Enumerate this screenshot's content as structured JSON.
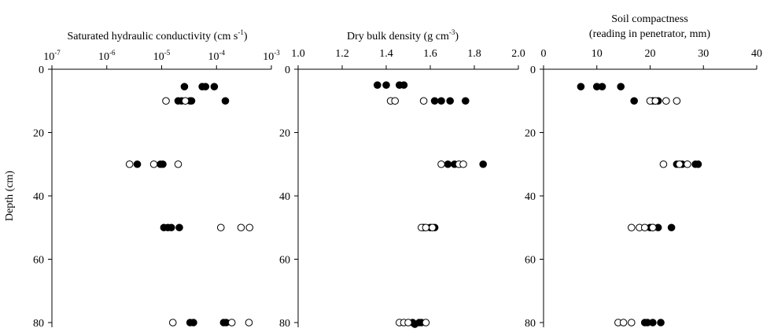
{
  "chart_data": [
    {
      "type": "scatter",
      "title": "Saturated hydraulic conductivity (cm s",
      "title_sup": "-1",
      "title_end": ")",
      "ylabel": "Depth (cm)",
      "x_scale": "log",
      "xlim": [
        1e-07,
        0.001
      ],
      "x_tick_labels": [
        {
          "value": 1e-07,
          "base": "10",
          "exp": "-7"
        },
        {
          "value": 1e-06,
          "base": "10",
          "exp": "-6"
        },
        {
          "value": 1e-05,
          "base": "10",
          "exp": "-5"
        },
        {
          "value": 0.0001,
          "base": "10",
          "exp": "-4"
        },
        {
          "value": 0.001,
          "base": "10",
          "exp": "-3"
        }
      ],
      "ylim": [
        0,
        80
      ],
      "y_reversed": true,
      "y_ticks": [
        0,
        20,
        40,
        60,
        80
      ],
      "x_axis_position": "top",
      "series": [
        {
          "marker": "filled",
          "points": [
            [
              2.6e-05,
              5.5
            ],
            [
              5.5e-05,
              5.5
            ],
            [
              6.3e-05,
              5.5
            ],
            [
              9.1e-05,
              5.5
            ],
            [
              2e-05,
              10
            ],
            [
              2.3e-05,
              10
            ],
            [
              3.3e-05,
              10
            ],
            [
              3.5e-05,
              10
            ],
            [
              0.000145,
              10
            ],
            [
              3.6e-06,
              30
            ],
            [
              9.5e-06,
              30
            ],
            [
              1.05e-05,
              30
            ],
            [
              1.1e-05,
              50
            ],
            [
              1.3e-05,
              50
            ],
            [
              1.5e-05,
              50
            ],
            [
              2.1e-05,
              50
            ],
            [
              3.3e-05,
              80
            ],
            [
              3.8e-05,
              80
            ],
            [
              0.000135,
              80
            ],
            [
              0.00015,
              80
            ]
          ]
        },
        {
          "marker": "open",
          "points": [
            [
              1.2e-05,
              10
            ],
            [
              2.7e-05,
              10
            ],
            [
              2.6e-06,
              30
            ],
            [
              7.2e-06,
              30
            ],
            [
              2e-05,
              30
            ],
            [
              0.00012,
              50
            ],
            [
              0.00028,
              50
            ],
            [
              0.0004,
              50
            ],
            [
              1.6e-05,
              80
            ],
            [
              0.00019,
              80
            ],
            [
              0.00039,
              80
            ]
          ]
        }
      ]
    },
    {
      "type": "scatter",
      "title": "Dry bulk density (g cm",
      "title_sup": "-3",
      "title_end": ")",
      "x_scale": "linear",
      "xlim": [
        1.0,
        2.0
      ],
      "x_ticks": [
        1.0,
        1.2,
        1.4,
        1.6,
        1.8,
        2.0
      ],
      "x_tick_labels": [
        "1.0",
        "1.2",
        "1.4",
        "1.6",
        "1.8",
        "2.0"
      ],
      "ylim": [
        0,
        80
      ],
      "y_reversed": true,
      "y_ticks": [
        0,
        20,
        40,
        60,
        80
      ],
      "x_axis_position": "top",
      "series": [
        {
          "marker": "filled",
          "points": [
            [
              1.36,
              5
            ],
            [
              1.4,
              5
            ],
            [
              1.46,
              5
            ],
            [
              1.48,
              5
            ],
            [
              1.62,
              10
            ],
            [
              1.65,
              10
            ],
            [
              1.69,
              10
            ],
            [
              1.76,
              10
            ],
            [
              1.68,
              30
            ],
            [
              1.71,
              30
            ],
            [
              1.84,
              30
            ],
            [
              1.57,
              50
            ],
            [
              1.6,
              50
            ],
            [
              1.62,
              50
            ],
            [
              1.52,
              80
            ],
            [
              1.53,
              80.5
            ],
            [
              1.55,
              80
            ],
            [
              1.56,
              80
            ]
          ]
        },
        {
          "marker": "open",
          "points": [
            [
              1.42,
              10
            ],
            [
              1.44,
              10
            ],
            [
              1.57,
              10
            ],
            [
              1.65,
              30
            ],
            [
              1.73,
              30
            ],
            [
              1.75,
              30
            ],
            [
              1.56,
              50
            ],
            [
              1.58,
              50
            ],
            [
              1.61,
              50
            ],
            [
              1.46,
              80
            ],
            [
              1.48,
              80
            ],
            [
              1.5,
              80
            ],
            [
              1.58,
              80
            ]
          ]
        }
      ]
    },
    {
      "type": "scatter",
      "title_line1": "Soil compactness",
      "title_line2": "(reading in penetrator, mm)",
      "x_scale": "linear",
      "xlim": [
        0,
        40
      ],
      "x_ticks": [
        0,
        10,
        20,
        30,
        40
      ],
      "x_tick_labels": [
        "0",
        "10",
        "20",
        "30",
        "40"
      ],
      "ylim": [
        0,
        80
      ],
      "y_reversed": true,
      "y_ticks": [
        0,
        20,
        40,
        60,
        80
      ],
      "x_axis_position": "top",
      "series": [
        {
          "marker": "filled",
          "points": [
            [
              7,
              5.5
            ],
            [
              10,
              5.5
            ],
            [
              11,
              5.5
            ],
            [
              14.5,
              5.5
            ],
            [
              17,
              10
            ],
            [
              20.5,
              10
            ],
            [
              21.5,
              10
            ],
            [
              25,
              30
            ],
            [
              26,
              30
            ],
            [
              28.5,
              30
            ],
            [
              29,
              30
            ],
            [
              20,
              50
            ],
            [
              20.5,
              50
            ],
            [
              21.5,
              50
            ],
            [
              24,
              50
            ],
            [
              19,
              80
            ],
            [
              19.5,
              80
            ],
            [
              20.5,
              80
            ],
            [
              22,
              80
            ]
          ]
        },
        {
          "marker": "open",
          "points": [
            [
              20,
              10
            ],
            [
              21,
              10
            ],
            [
              23,
              10
            ],
            [
              25,
              10
            ],
            [
              22.5,
              30
            ],
            [
              25.5,
              30
            ],
            [
              27,
              30
            ],
            [
              16.5,
              50
            ],
            [
              18,
              50
            ],
            [
              19,
              50
            ],
            [
              20.5,
              50
            ],
            [
              14,
              80
            ],
            [
              15,
              80
            ],
            [
              16.5,
              80
            ]
          ]
        }
      ]
    }
  ]
}
